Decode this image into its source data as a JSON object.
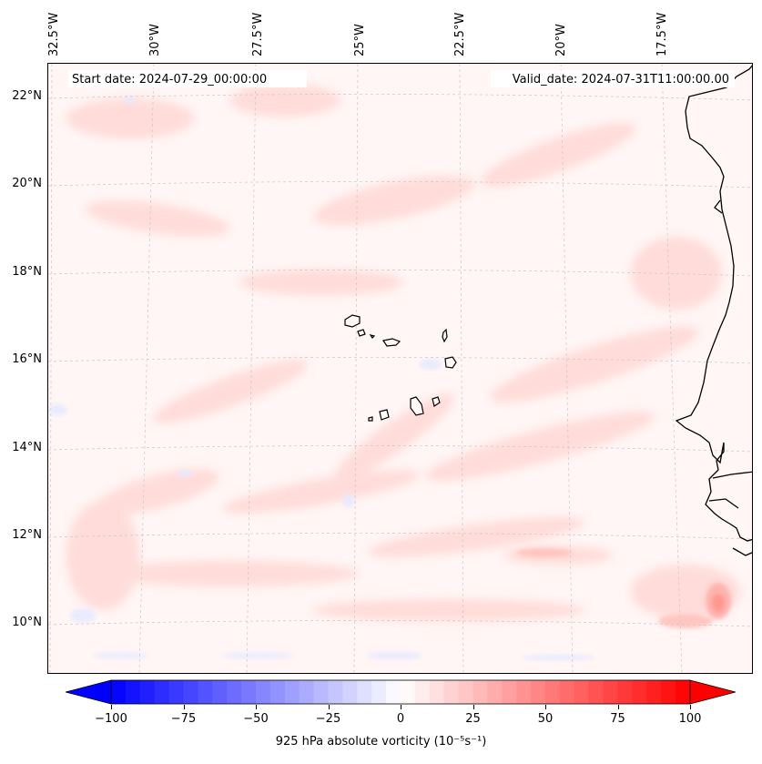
{
  "map": {
    "start_date": "Start date: 2024-07-29_00:00:00",
    "valid_date": "Valid_date: 2024-07-31T11:00:00.00",
    "longitude_labels": [
      "32.5°W",
      "30°W",
      "27.5°W",
      "25°W",
      "22.5°W",
      "20°W",
      "17.5°W"
    ],
    "latitude_labels": [
      "22°N",
      "20°N",
      "18°N",
      "16°N",
      "14°N",
      "12°N",
      "10°N"
    ],
    "field": "925 hPa absolute vorticity",
    "projection_note": "Lambert-style gridlines, dashed light grey",
    "colors": {
      "negative_max": "#0000ff",
      "neutral": "#ffffff",
      "positive_max": "#ff0000",
      "coastline": "#000000",
      "gridline": "#cccccc"
    }
  },
  "colorbar": {
    "min": -100,
    "max": 100,
    "tick_values": [
      -100,
      -75,
      -50,
      -25,
      0,
      25,
      50,
      75,
      100
    ],
    "tick_labels": [
      "−100",
      "−75",
      "−50",
      "−25",
      "0",
      "25",
      "50",
      "75",
      "100"
    ],
    "label": "925 hPa absolute vorticity (10⁻⁵s⁻¹)",
    "extend": "both"
  }
}
